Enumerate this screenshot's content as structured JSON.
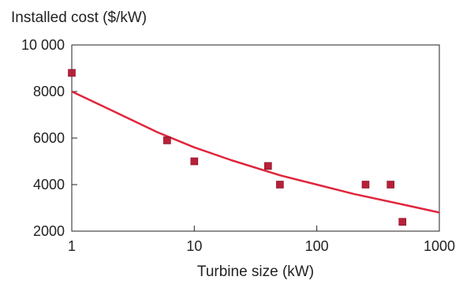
{
  "chart_data": {
    "type": "scatter",
    "ylabel": "Installed cost ($/kW)",
    "xlabel": "Turbine size (kW)",
    "x_scale": "log",
    "xlim": [
      1,
      1000
    ],
    "ylim": [
      2000,
      10000
    ],
    "x_ticks": [
      1,
      10,
      100,
      1000
    ],
    "x_tick_labels": [
      "1",
      "10",
      "100",
      "1000"
    ],
    "y_ticks": [
      2000,
      4000,
      6000,
      8000,
      10000
    ],
    "y_tick_labels": [
      "2000",
      "4000",
      "6000",
      "8000",
      "10 000"
    ],
    "grid": false,
    "points": [
      {
        "x": 1,
        "y": 8800
      },
      {
        "x": 6,
        "y": 5900
      },
      {
        "x": 10,
        "y": 5000
      },
      {
        "x": 40,
        "y": 4800
      },
      {
        "x": 50,
        "y": 4000
      },
      {
        "x": 250,
        "y": 4000
      },
      {
        "x": 400,
        "y": 4000
      },
      {
        "x": 500,
        "y": 2400
      }
    ],
    "trend_line": {
      "x": [
        1,
        2,
        5,
        10,
        20,
        50,
        100,
        200,
        500,
        1000
      ],
      "y": [
        8000,
        7250,
        6250,
        5600,
        5050,
        4400,
        4000,
        3600,
        3150,
        2800
      ]
    },
    "colors": {
      "points": "#b8203a",
      "trend_line": "#e0253c",
      "axis": "#222222"
    }
  }
}
